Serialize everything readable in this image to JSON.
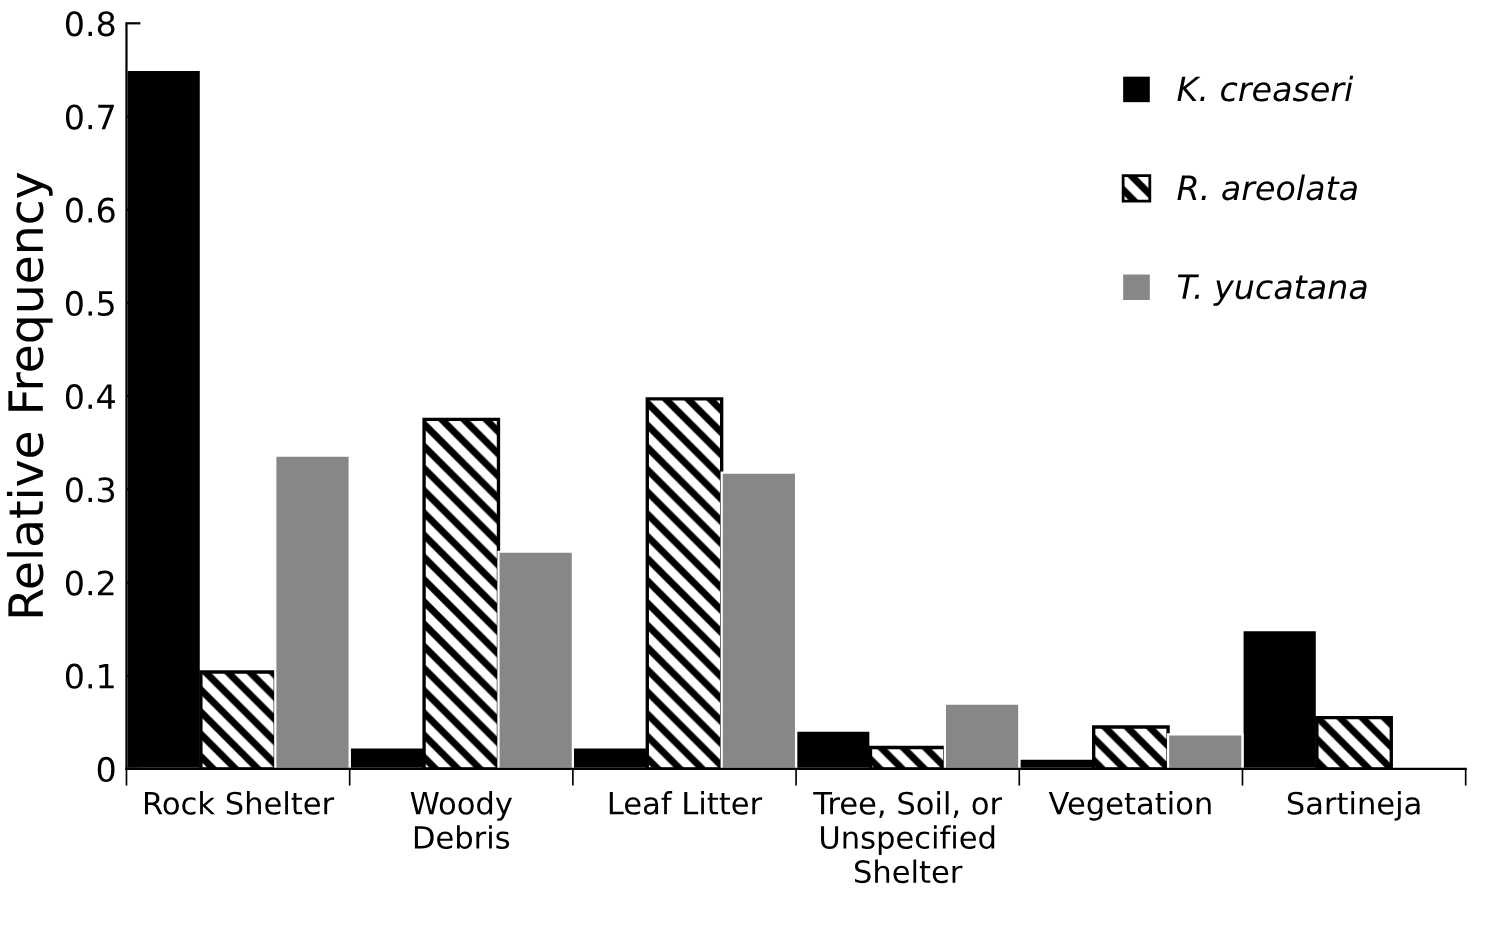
{
  "chart_data": {
    "type": "bar",
    "ylabel": "Relative Frequency",
    "categories": [
      "Rock Shelter",
      "Woody\nDebris",
      "Leaf Litter",
      "Tree, Soil, or\nUnspecified\nShelter",
      "Vegetation",
      "Sartineja"
    ],
    "series": [
      {
        "name": "K. creaseri",
        "color": "#000000",
        "values": [
          0.75,
          0.023,
          0.023,
          0.041,
          0.011,
          0.149
        ]
      },
      {
        "name": "R. areolata",
        "color": "#000000",
        "values": [
          0.104,
          0.375,
          0.397,
          0.023,
          0.045,
          0.055
        ]
      },
      {
        "name": "T. yucatana",
        "color": "#878787",
        "values": [
          0.336,
          0.233,
          0.318,
          0.07,
          0.037,
          null
        ]
      }
    ],
    "ylim": [
      0,
      0.8
    ],
    "yticks": [
      0,
      0.1,
      0.2,
      0.3,
      0.4,
      0.5,
      0.6,
      0.7,
      0.8
    ],
    "grid": false,
    "legend": "top right"
  }
}
